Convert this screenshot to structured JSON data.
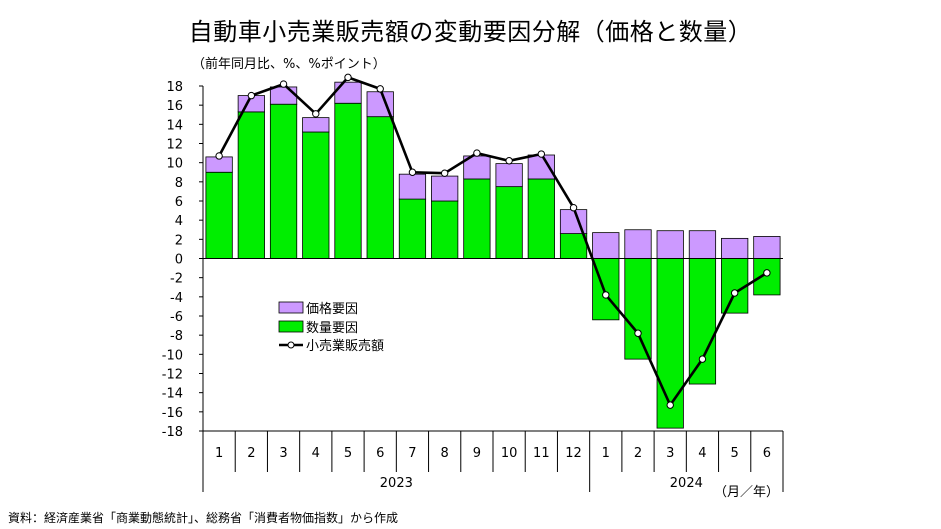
{
  "title": "自動車小売業販売額の変動要因分解（価格と数量）",
  "unit_label": "（前年同月比、%、%ポイント）",
  "source": "資料：経済産業省「商業動態統計」、総務省「消費者物価指数」から作成",
  "axis_unit_label": "（月／年）",
  "colors": {
    "price_factor": "#cc99ff",
    "quantity_factor": "#00ee00",
    "sales_line": "#000000",
    "marker_fill": "#ffffff"
  },
  "chart_data": {
    "type": "bar",
    "stacked": true,
    "title": "自動車小売業販売額の変動要因分解（価格と数量）",
    "ylim": [
      -18,
      18
    ],
    "y_ticks": [
      18,
      16,
      14,
      12,
      10,
      8,
      6,
      4,
      2,
      0,
      -2,
      -4,
      -6,
      -8,
      -10,
      -12,
      -14,
      -16,
      -18
    ],
    "categories": [
      "1",
      "2",
      "3",
      "4",
      "5",
      "6",
      "7",
      "8",
      "9",
      "10",
      "11",
      "12",
      "1",
      "2",
      "3",
      "4",
      "5",
      "6"
    ],
    "year_groups": [
      {
        "label": "2023",
        "count": 12
      },
      {
        "label": "2024",
        "count": 6
      }
    ],
    "legend_position": "center-left",
    "series": [
      {
        "name": "価格要因",
        "type": "bar",
        "values": [
          1.6,
          1.7,
          1.8,
          1.5,
          2.2,
          2.6,
          2.6,
          2.6,
          2.4,
          2.4,
          2.5,
          2.5,
          2.7,
          3.0,
          2.9,
          2.9,
          2.1,
          2.3
        ]
      },
      {
        "name": "数量要因",
        "type": "bar",
        "values": [
          9.0,
          15.3,
          16.1,
          13.2,
          16.2,
          14.8,
          6.2,
          6.0,
          8.3,
          7.5,
          8.3,
          2.6,
          -6.4,
          -10.5,
          -17.7,
          -13.1,
          -5.7,
          -3.8
        ]
      },
      {
        "name": "小売業販売額",
        "type": "line",
        "values": [
          10.7,
          17.0,
          18.2,
          15.1,
          18.9,
          17.7,
          9.0,
          8.9,
          11.0,
          10.2,
          10.9,
          5.3,
          -3.8,
          -7.8,
          -15.3,
          -10.5,
          -3.6,
          -1.5
        ]
      }
    ]
  }
}
